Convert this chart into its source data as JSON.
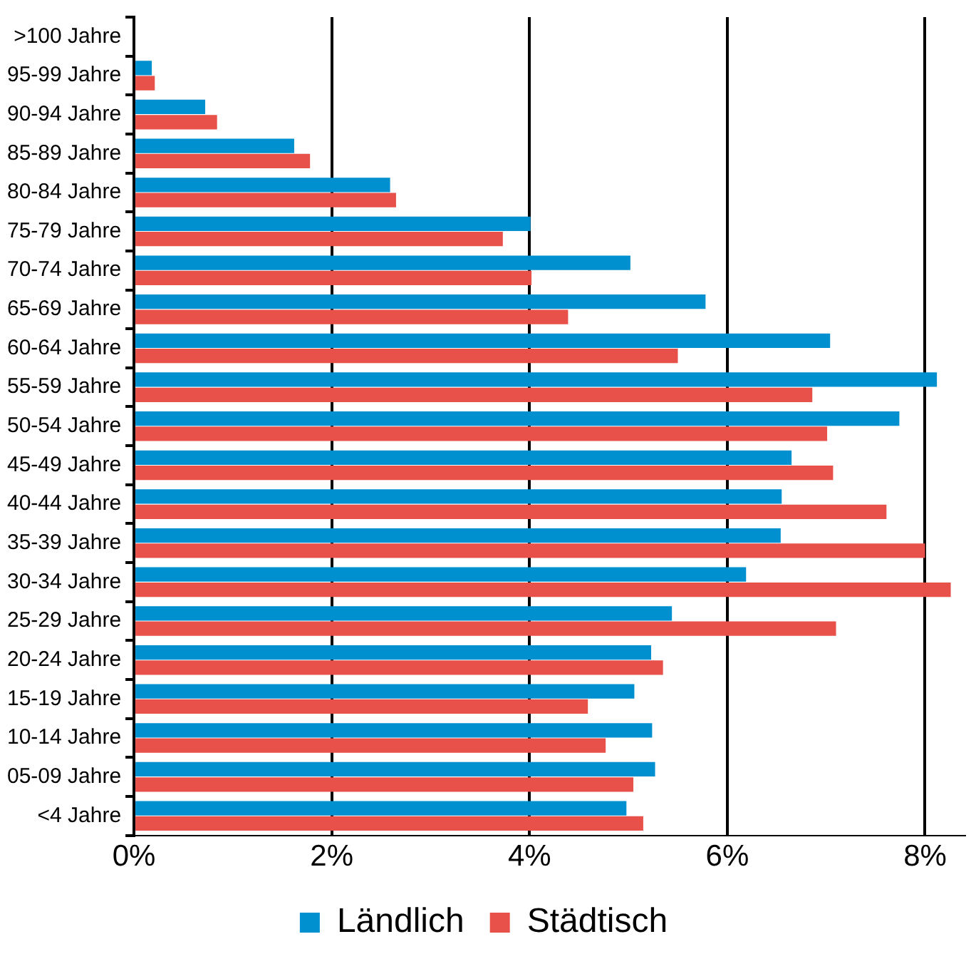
{
  "chart_data": {
    "type": "bar",
    "orientation": "horizontal",
    "categories": [
      ">100 Jahre",
      "95-99 Jahre",
      "90-94 Jahre",
      "85-89 Jahre",
      "80-84 Jahre",
      "75-79 Jahre",
      "70-74 Jahre",
      "65-69 Jahre",
      "60-64 Jahre",
      "55-59 Jahre",
      "50-54 Jahre",
      "45-49 Jahre",
      "40-44 Jahre",
      "35-39 Jahre",
      "30-34 Jahre",
      "25-29 Jahre",
      "20-24 Jahre",
      "15-19 Jahre",
      "10-14 Jahre",
      "05-09 Jahre",
      "<4 Jahre"
    ],
    "series": [
      {
        "name": "Ländlich",
        "color": "#0090d0",
        "values": [
          null,
          0.18,
          0.72,
          1.62,
          2.59,
          4.01,
          5.02,
          5.78,
          7.04,
          8.12,
          7.74,
          6.65,
          6.55,
          6.54,
          6.19,
          5.44,
          5.23,
          5.06,
          5.24,
          5.27,
          4.98
        ]
      },
      {
        "name": "Städtisch",
        "color": "#e8504a",
        "values": [
          null,
          0.21,
          0.84,
          1.78,
          2.65,
          3.73,
          4.02,
          4.39,
          5.5,
          6.86,
          7.01,
          7.07,
          7.61,
          8.0,
          8.26,
          7.1,
          5.35,
          4.59,
          4.77,
          5.05,
          5.15
        ]
      }
    ],
    "xlim": [
      0,
      8.4
    ],
    "xticks": [
      {
        "value": 0,
        "label": "0%"
      },
      {
        "value": 2,
        "label": "2%"
      },
      {
        "value": 4,
        "label": "4%"
      },
      {
        "value": 6,
        "label": "6%"
      },
      {
        "value": 8,
        "label": "8%"
      }
    ],
    "grid": "x",
    "legend": "bottom"
  }
}
